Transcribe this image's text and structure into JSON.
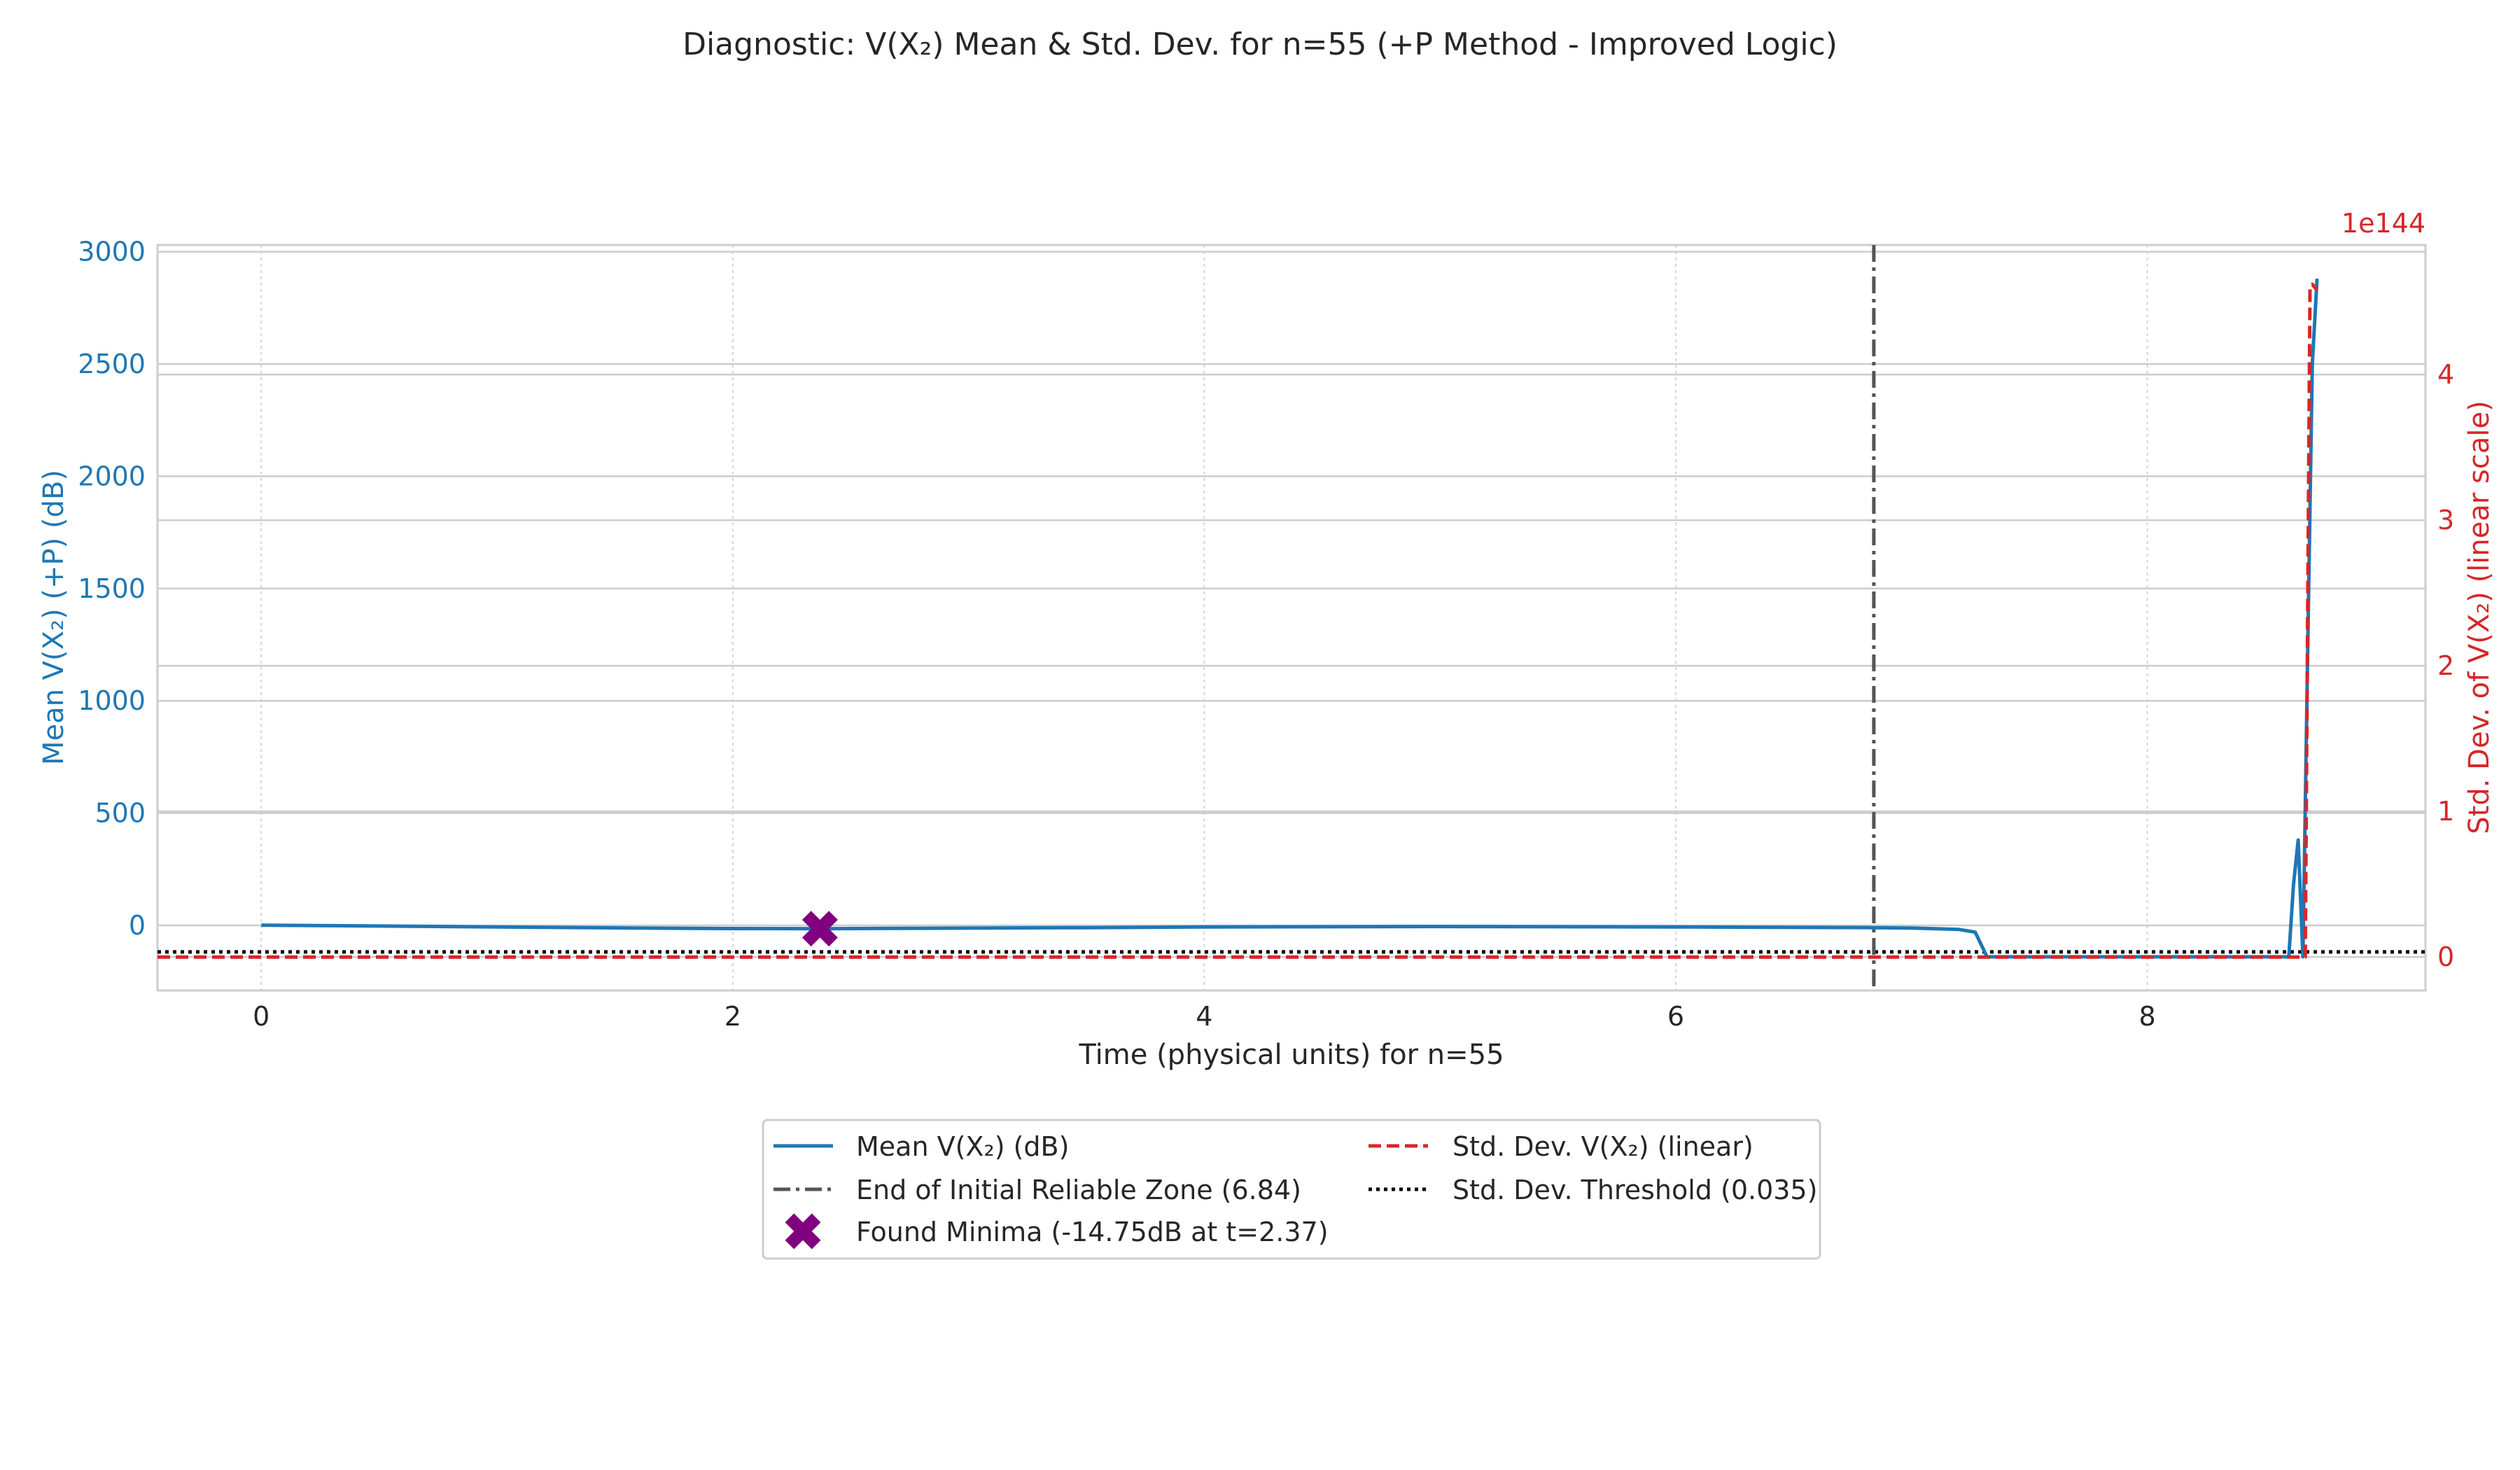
{
  "chart_data": {
    "type": "line",
    "title": "Diagnostic: V(X₂) Mean & Std. Dev. for n=55 (+P Method - Improved Logic)",
    "xlabel": "Time (physical units) for n=55",
    "ylabel_left": "Mean V(X₂) (+P) (dB)",
    "ylabel_right": "Std. Dev. of V(X₂) (linear scale)",
    "right_axis_offset_text": "1e144",
    "xlim": [
      -0.44,
      9.18
    ],
    "ylim_left": [
      -290,
      3030
    ],
    "ylim_right": [
      -0.23,
      4.89
    ],
    "x_ticks": [
      0,
      2,
      4,
      6,
      8
    ],
    "y_ticks_left": [
      0,
      500,
      1000,
      1500,
      2000,
      2500,
      3000
    ],
    "y_ticks_right": [
      0,
      1,
      2,
      3,
      4
    ],
    "colors": {
      "mean": "#1f77b4",
      "std": "#d62728",
      "reliable": "#555555",
      "threshold": "#000000",
      "minima": "#800080",
      "left_axis": "#1f77b4",
      "right_axis": "#d62728"
    },
    "series": [
      {
        "name": "Mean V(X₂) (dB)",
        "axis": "left",
        "style": "solid",
        "x": [
          0,
          0.5,
          1.0,
          1.5,
          2.0,
          2.37,
          2.8,
          3.5,
          4.0,
          5.0,
          6.0,
          6.84,
          7.0,
          7.2,
          7.27,
          7.32,
          7.5,
          8.0,
          8.5,
          8.6,
          8.62,
          8.64,
          8.66,
          8.68,
          8.7,
          8.72
        ],
        "y": [
          1,
          -3,
          -7,
          -11,
          -14,
          -14.75,
          -13,
          -10,
          -7,
          -5,
          -7,
          -10,
          -12,
          -18,
          -30,
          -140,
          -140,
          -140,
          -140,
          -140,
          180,
          380,
          -140,
          1200,
          2500,
          2880
        ]
      },
      {
        "name": "Std. Dev. V(X₂) (linear)",
        "axis": "right",
        "style": "dashed",
        "x": [
          -0.44,
          8.67,
          8.69,
          8.7,
          8.72
        ],
        "y": [
          0,
          0,
          4.6,
          4.62,
          4.58
        ]
      }
    ],
    "reliable_zone_end": 6.84,
    "std_threshold": 0.035,
    "minima": {
      "x": 2.37,
      "y": -14.75
    },
    "legend": {
      "position": "bottom-center",
      "entries": [
        {
          "label": "Mean V(X₂) (dB)",
          "style": "solid-blue"
        },
        {
          "label": "Std. Dev. V(X₂) (linear)",
          "style": "dashed-red"
        },
        {
          "label": "End of Initial Reliable Zone (6.84)",
          "style": "dashdot-gray"
        },
        {
          "label": "Std. Dev. Threshold (0.035)",
          "style": "dotted-black"
        },
        {
          "label": "Found Minima (-14.75dB at t=2.37)",
          "style": "x-purple"
        }
      ]
    }
  }
}
